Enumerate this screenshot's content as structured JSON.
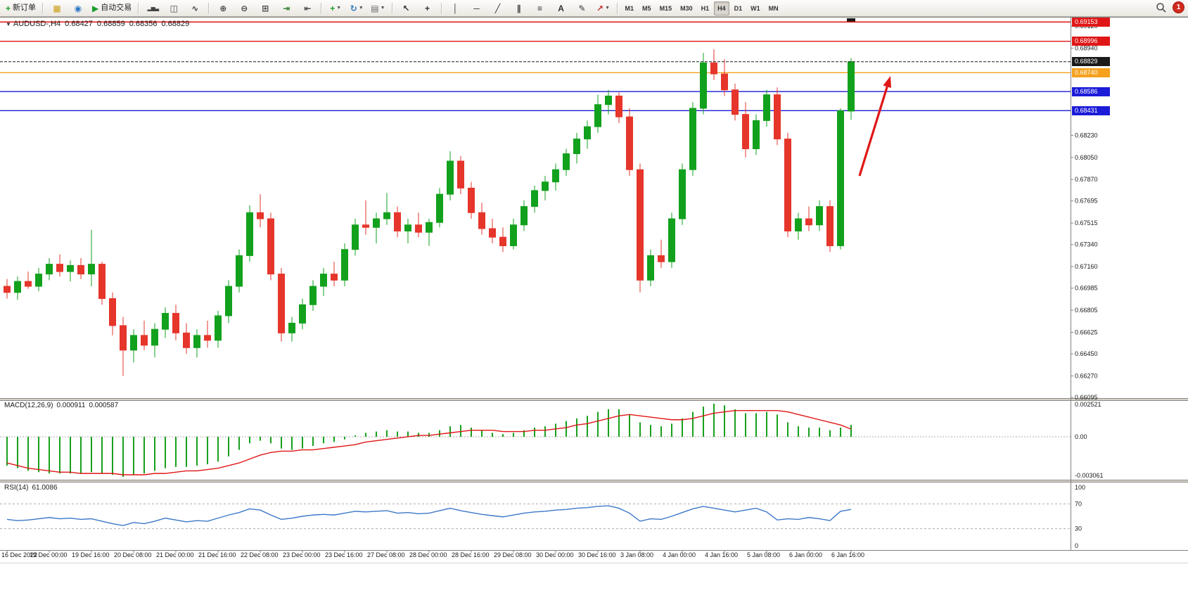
{
  "app": {
    "name": "MetaTrader terminal"
  },
  "toolbar": {
    "buttons": [
      {
        "name": "new-order-button",
        "glyph": "+",
        "glyph_color": "#1a9c2a",
        "label": "新订单"
      },
      {
        "type": "separator"
      },
      {
        "name": "charts-window-button",
        "glyph": "▦",
        "glyph_color": "#c89a12"
      },
      {
        "name": "refresh-button",
        "glyph": "◉",
        "glyph_color": "#2b78c5"
      },
      {
        "name": "autotrading-button",
        "glyph": "▶",
        "glyph_color": "#1a9c2a",
        "label": "自动交易"
      },
      {
        "type": "separator"
      },
      {
        "name": "bar-chart-button",
        "glyph": "▂▅▃",
        "glyph_color": "#444444",
        "small": true
      },
      {
        "name": "candlestick-button",
        "glyph": "◫",
        "glyph_color": "#444444"
      },
      {
        "name": "line-chart-button",
        "glyph": "∿",
        "glyph_color": "#444444"
      },
      {
        "type": "separator"
      },
      {
        "name": "zoom-in-button",
        "glyph": "⊕",
        "glyph_color": "#444444"
      },
      {
        "name": "zoom-out-button",
        "glyph": "⊖",
        "glyph_color": "#444444"
      },
      {
        "name": "tile-windows-button",
        "glyph": "⊞",
        "glyph_color": "#444444"
      },
      {
        "name": "auto-scroll-button",
        "glyph": "⇥",
        "glyph_color": "#2a7a2a"
      },
      {
        "name": "chart-shift-button",
        "glyph": "⇤",
        "glyph_color": "#444444"
      },
      {
        "type": "separator"
      },
      {
        "name": "indicators-button",
        "glyph": "+",
        "glyph_color": "#1a9c2a",
        "dropdown": true
      },
      {
        "name": "cycles-button",
        "glyph": "↻",
        "glyph_color": "#2b78c5",
        "dropdown": true
      },
      {
        "name": "templates-button",
        "glyph": "▤",
        "glyph_color": "#666666",
        "dropdown": true
      },
      {
        "type": "separator"
      },
      {
        "name": "cursor-button",
        "glyph": "↖",
        "glyph_color": "#333333"
      },
      {
        "name": "crosshair-button",
        "glyph": "+",
        "glyph_color": "#333333"
      },
      {
        "type": "separator"
      },
      {
        "name": "vertical-line-button",
        "glyph": "│",
        "glyph_color": "#333333"
      },
      {
        "name": "horizontal-line-button",
        "glyph": "─",
        "glyph_color": "#333333"
      },
      {
        "name": "trendline-button",
        "glyph": "╱",
        "glyph_color": "#333333"
      },
      {
        "name": "channel-button",
        "glyph": "∥",
        "glyph_color": "#333333"
      },
      {
        "name": "fibonacci-button",
        "glyph": "≡",
        "glyph_color": "#333333"
      },
      {
        "name": "text-button",
        "glyph": "A",
        "glyph_color": "#333333"
      },
      {
        "name": "text-label-button",
        "glyph": "✎",
        "glyph_color": "#333333"
      },
      {
        "name": "arrows-button",
        "glyph": "↗",
        "glyph_color": "#c23333",
        "dropdown": true
      },
      {
        "type": "separator"
      }
    ],
    "timeframes": {
      "items": [
        "M1",
        "M5",
        "M15",
        "M30",
        "H1",
        "H4",
        "D1",
        "W1",
        "MN"
      ],
      "active": "H4"
    },
    "search_tooltip": "Search",
    "notification_count": "1"
  },
  "chart": {
    "symbol_info": {
      "marker": "▼",
      "symbol": "AUDUSD-,H4",
      "open": "0.68427",
      "high": "0.68859",
      "low": "0.68356",
      "close": "0.68829"
    },
    "price_axis_ticks": [
      "0.69120",
      "0.68940",
      "0.68230",
      "0.68050",
      "0.67870",
      "0.67695",
      "0.67515",
      "0.67340",
      "0.67160",
      "0.66985",
      "0.66805",
      "0.66625",
      "0.66450",
      "0.66270",
      "0.66095"
    ],
    "price_lines": [
      {
        "value": 0.69153,
        "label": "0.69153",
        "color": "#e01616",
        "dashed": false
      },
      {
        "value": 0.68996,
        "label": "0.68996",
        "color": "#e01616",
        "dashed": false
      },
      {
        "value": 0.68829,
        "label": "0.68829",
        "color": "#1a1a1a",
        "dashed": true
      },
      {
        "value": 0.6874,
        "label": "0.68740",
        "color": "#f5a11d",
        "dashed": false
      },
      {
        "value": 0.68586,
        "label": "0.68586",
        "color": "#1b1bd8",
        "dashed": false
      },
      {
        "value": 0.68431,
        "label": "0.68431",
        "color": "#1b1bd8",
        "dashed": false
      }
    ],
    "time_axis": [
      "16 Dec 2022",
      "19 Dec 00:00",
      "19 Dec 16:00",
      "20 Dec 08:00",
      "21 Dec 00:00",
      "21 Dec 16:00",
      "22 Dec 08:00",
      "23 Dec 00:00",
      "23 Dec 16:00",
      "27 Dec 08:00",
      "28 Dec 00:00",
      "28 Dec 16:00",
      "29 Dec 08:00",
      "30 Dec 00:00",
      "30 Dec 16:00",
      "3 Jan 08:00",
      "4 Jan 00:00",
      "4 Jan 16:00",
      "5 Jan 08:00",
      "6 Jan 00:00",
      "6 Jan 16:00"
    ],
    "annotations": {
      "arrow": {
        "from": [
          1222,
          250
        ],
        "to": [
          1266,
          108
        ],
        "color": "#e01616"
      }
    }
  },
  "colors": {
    "candle_up": "#12a11d",
    "candle_down": "#e6352b",
    "macd_histogram": "#18a01c",
    "macd_signal": "#e01616",
    "rsi_line": "#3c78c8",
    "axis_text": "#1a1a1a",
    "panel_border": "#808080"
  },
  "chart_data": [
    {
      "type": "candlestick",
      "name": "AUDUSD-,H4",
      "open": "0.68427",
      "high": "0.68859",
      "low": "0.68356",
      "close": "0.68829",
      "ohlc": [
        [
          0.67,
          0.6706,
          0.669,
          0.6695
        ],
        [
          0.6695,
          0.6708,
          0.6689,
          0.6704
        ],
        [
          0.6704,
          0.6712,
          0.6698,
          0.67
        ],
        [
          0.67,
          0.6715,
          0.6696,
          0.671
        ],
        [
          0.671,
          0.6723,
          0.6705,
          0.6718
        ],
        [
          0.6718,
          0.6726,
          0.6708,
          0.6712
        ],
        [
          0.6712,
          0.6721,
          0.6704,
          0.6717
        ],
        [
          0.6717,
          0.6723,
          0.6706,
          0.671
        ],
        [
          0.671,
          0.6746,
          0.67,
          0.6718
        ],
        [
          0.6718,
          0.672,
          0.6685,
          0.669
        ],
        [
          0.669,
          0.6695,
          0.666,
          0.6668
        ],
        [
          0.6668,
          0.6675,
          0.6627,
          0.6648
        ],
        [
          0.6648,
          0.6665,
          0.6638,
          0.666
        ],
        [
          0.666,
          0.6672,
          0.6648,
          0.6652
        ],
        [
          0.6652,
          0.667,
          0.6642,
          0.6665
        ],
        [
          0.6665,
          0.6683,
          0.6658,
          0.6678
        ],
        [
          0.6678,
          0.6685,
          0.6656,
          0.6662
        ],
        [
          0.6662,
          0.667,
          0.6645,
          0.665
        ],
        [
          0.665,
          0.6665,
          0.6642,
          0.666
        ],
        [
          0.666,
          0.6672,
          0.665,
          0.6656
        ],
        [
          0.6656,
          0.668,
          0.665,
          0.6676
        ],
        [
          0.6676,
          0.6705,
          0.667,
          0.67
        ],
        [
          0.67,
          0.673,
          0.6695,
          0.6725
        ],
        [
          0.6725,
          0.6766,
          0.672,
          0.676
        ],
        [
          0.676,
          0.6775,
          0.6748,
          0.6755
        ],
        [
          0.6755,
          0.676,
          0.6705,
          0.671
        ],
        [
          0.671,
          0.6715,
          0.6655,
          0.6662
        ],
        [
          0.6662,
          0.6675,
          0.6655,
          0.667
        ],
        [
          0.667,
          0.669,
          0.6665,
          0.6685
        ],
        [
          0.6685,
          0.6705,
          0.668,
          0.67
        ],
        [
          0.67,
          0.6715,
          0.6692,
          0.671
        ],
        [
          0.671,
          0.672,
          0.67,
          0.6705
        ],
        [
          0.6705,
          0.6735,
          0.67,
          0.673
        ],
        [
          0.673,
          0.6755,
          0.6725,
          0.675
        ],
        [
          0.675,
          0.677,
          0.6742,
          0.6748
        ],
        [
          0.6748,
          0.676,
          0.6735,
          0.6755
        ],
        [
          0.6755,
          0.6776,
          0.675,
          0.676
        ],
        [
          0.676,
          0.6765,
          0.674,
          0.6745
        ],
        [
          0.6745,
          0.6755,
          0.6735,
          0.675
        ],
        [
          0.675,
          0.676,
          0.674,
          0.6744
        ],
        [
          0.6744,
          0.6755,
          0.6733,
          0.6752
        ],
        [
          0.6752,
          0.678,
          0.6748,
          0.6775
        ],
        [
          0.6775,
          0.681,
          0.677,
          0.6802
        ],
        [
          0.6802,
          0.6806,
          0.6775,
          0.678
        ],
        [
          0.678,
          0.6785,
          0.6755,
          0.676
        ],
        [
          0.676,
          0.6768,
          0.6742,
          0.6747
        ],
        [
          0.6747,
          0.6755,
          0.6735,
          0.674
        ],
        [
          0.674,
          0.6748,
          0.6728,
          0.6733
        ],
        [
          0.6733,
          0.6755,
          0.673,
          0.675
        ],
        [
          0.675,
          0.677,
          0.6745,
          0.6765
        ],
        [
          0.6765,
          0.6782,
          0.676,
          0.6778
        ],
        [
          0.6778,
          0.679,
          0.677,
          0.6785
        ],
        [
          0.6785,
          0.68,
          0.6778,
          0.6795
        ],
        [
          0.6795,
          0.6812,
          0.679,
          0.6808
        ],
        [
          0.6808,
          0.6825,
          0.68,
          0.682
        ],
        [
          0.682,
          0.6835,
          0.6812,
          0.683
        ],
        [
          0.683,
          0.6856,
          0.6825,
          0.6848
        ],
        [
          0.6848,
          0.686,
          0.684,
          0.6855
        ],
        [
          0.6855,
          0.6858,
          0.6833,
          0.6838
        ],
        [
          0.6838,
          0.6845,
          0.679,
          0.6795
        ],
        [
          0.6795,
          0.68,
          0.6695,
          0.6705
        ],
        [
          0.6705,
          0.673,
          0.67,
          0.6725
        ],
        [
          0.6725,
          0.6738,
          0.6715,
          0.672
        ],
        [
          0.672,
          0.676,
          0.6715,
          0.6755
        ],
        [
          0.6755,
          0.68,
          0.675,
          0.6795
        ],
        [
          0.6795,
          0.685,
          0.679,
          0.6845
        ],
        [
          0.6845,
          0.689,
          0.684,
          0.6882
        ],
        [
          0.6882,
          0.6893,
          0.6868,
          0.6873
        ],
        [
          0.6873,
          0.6885,
          0.6855,
          0.686
        ],
        [
          0.686,
          0.6865,
          0.6835,
          0.684
        ],
        [
          0.684,
          0.685,
          0.6805,
          0.6812
        ],
        [
          0.6812,
          0.684,
          0.6807,
          0.6835
        ],
        [
          0.6835,
          0.686,
          0.683,
          0.6856
        ],
        [
          0.6856,
          0.6862,
          0.6815,
          0.682
        ],
        [
          0.682,
          0.6825,
          0.674,
          0.6745
        ],
        [
          0.6745,
          0.676,
          0.6738,
          0.6755
        ],
        [
          0.6755,
          0.6765,
          0.6745,
          0.675
        ],
        [
          0.675,
          0.677,
          0.6745,
          0.6765
        ],
        [
          0.6765,
          0.677,
          0.6728,
          0.6733
        ],
        [
          0.6733,
          0.6845,
          0.673,
          0.6843
        ],
        [
          0.68427,
          0.68859,
          0.68356,
          0.68829
        ]
      ]
    },
    {
      "type": "bar",
      "name": "MACD(12,26,9)",
      "main_value": "0.000911",
      "signal_value": "0.000587",
      "axis": {
        "max": "0.002521",
        "zero": "0.00",
        "min": "-0.003061"
      },
      "histogram": [
        -0.0022,
        -0.0024,
        -0.0026,
        -0.0027,
        -0.0028,
        -0.0028,
        -0.0028,
        -0.0028,
        -0.0027,
        -0.0028,
        -0.0029,
        -0.00306,
        -0.0029,
        -0.0028,
        -0.0026,
        -0.0024,
        -0.0023,
        -0.0023,
        -0.0022,
        -0.0021,
        -0.0019,
        -0.0015,
        -0.001,
        -0.0005,
        -0.0003,
        -0.0005,
        -0.0009,
        -0.001,
        -0.0009,
        -0.0007,
        -0.0005,
        -0.0004,
        -0.0002,
        0.0001,
        0.0003,
        0.0004,
        0.0005,
        0.0004,
        0.0004,
        0.0003,
        0.0003,
        0.0005,
        0.0008,
        0.0009,
        0.0007,
        0.0005,
        0.0003,
        0.0002,
        0.0003,
        0.0005,
        0.0007,
        0.0008,
        0.001,
        0.0012,
        0.0014,
        0.0016,
        0.0019,
        0.0021,
        0.0021,
        0.0017,
        0.0011,
        0.0009,
        0.0008,
        0.001,
        0.0014,
        0.0019,
        0.0023,
        0.00252,
        0.0024,
        0.0021,
        0.0018,
        0.0018,
        0.0019,
        0.0017,
        0.0011,
        0.0008,
        0.0007,
        0.0007,
        0.0005,
        0.0007,
        0.000911
      ],
      "signal": [
        -0.002,
        -0.0022,
        -0.0024,
        -0.0025,
        -0.0026,
        -0.0027,
        -0.0027,
        -0.0028,
        -0.0028,
        -0.0028,
        -0.0028,
        -0.0029,
        -0.0029,
        -0.0029,
        -0.0028,
        -0.0028,
        -0.0027,
        -0.0026,
        -0.0026,
        -0.0025,
        -0.0024,
        -0.0022,
        -0.002,
        -0.0017,
        -0.0014,
        -0.0012,
        -0.0011,
        -0.0011,
        -0.001,
        -0.001,
        -0.0009,
        -0.0008,
        -0.0007,
        -0.0006,
        -0.0004,
        -0.0003,
        -0.0002,
        -0.0001,
        0.0,
        0.0001,
        0.0001,
        0.0002,
        0.0003,
        0.0004,
        0.0005,
        0.0005,
        0.0005,
        0.0004,
        0.0004,
        0.0004,
        0.0005,
        0.0005,
        0.0006,
        0.0007,
        0.0009,
        0.001,
        0.0012,
        0.0014,
        0.0016,
        0.0017,
        0.0016,
        0.0015,
        0.0014,
        0.0013,
        0.0013,
        0.0014,
        0.0016,
        0.0018,
        0.0019,
        0.002,
        0.002,
        0.002,
        0.002,
        0.002,
        0.0019,
        0.0017,
        0.0015,
        0.0013,
        0.0011,
        0.0009,
        0.000587
      ]
    },
    {
      "type": "line",
      "name": "RSI(14)",
      "value": "61.0086",
      "range": [
        0,
        100
      ],
      "levels": [
        70,
        30
      ],
      "axis": [
        "100",
        "70",
        "30",
        "0"
      ],
      "values": [
        45,
        43,
        44,
        46,
        48,
        46,
        47,
        45,
        46,
        42,
        38,
        35,
        40,
        38,
        42,
        47,
        44,
        41,
        43,
        42,
        47,
        52,
        56,
        62,
        60,
        52,
        45,
        47,
        50,
        52,
        53,
        52,
        55,
        58,
        57,
        58,
        59,
        55,
        56,
        54,
        55,
        59,
        63,
        59,
        56,
        53,
        51,
        49,
        52,
        55,
        57,
        58,
        60,
        61,
        63,
        64,
        66,
        67,
        63,
        55,
        42,
        46,
        45,
        50,
        56,
        62,
        66,
        63,
        60,
        57,
        60,
        63,
        57,
        44,
        46,
        45,
        48,
        46,
        43,
        58,
        61.0086
      ]
    }
  ]
}
